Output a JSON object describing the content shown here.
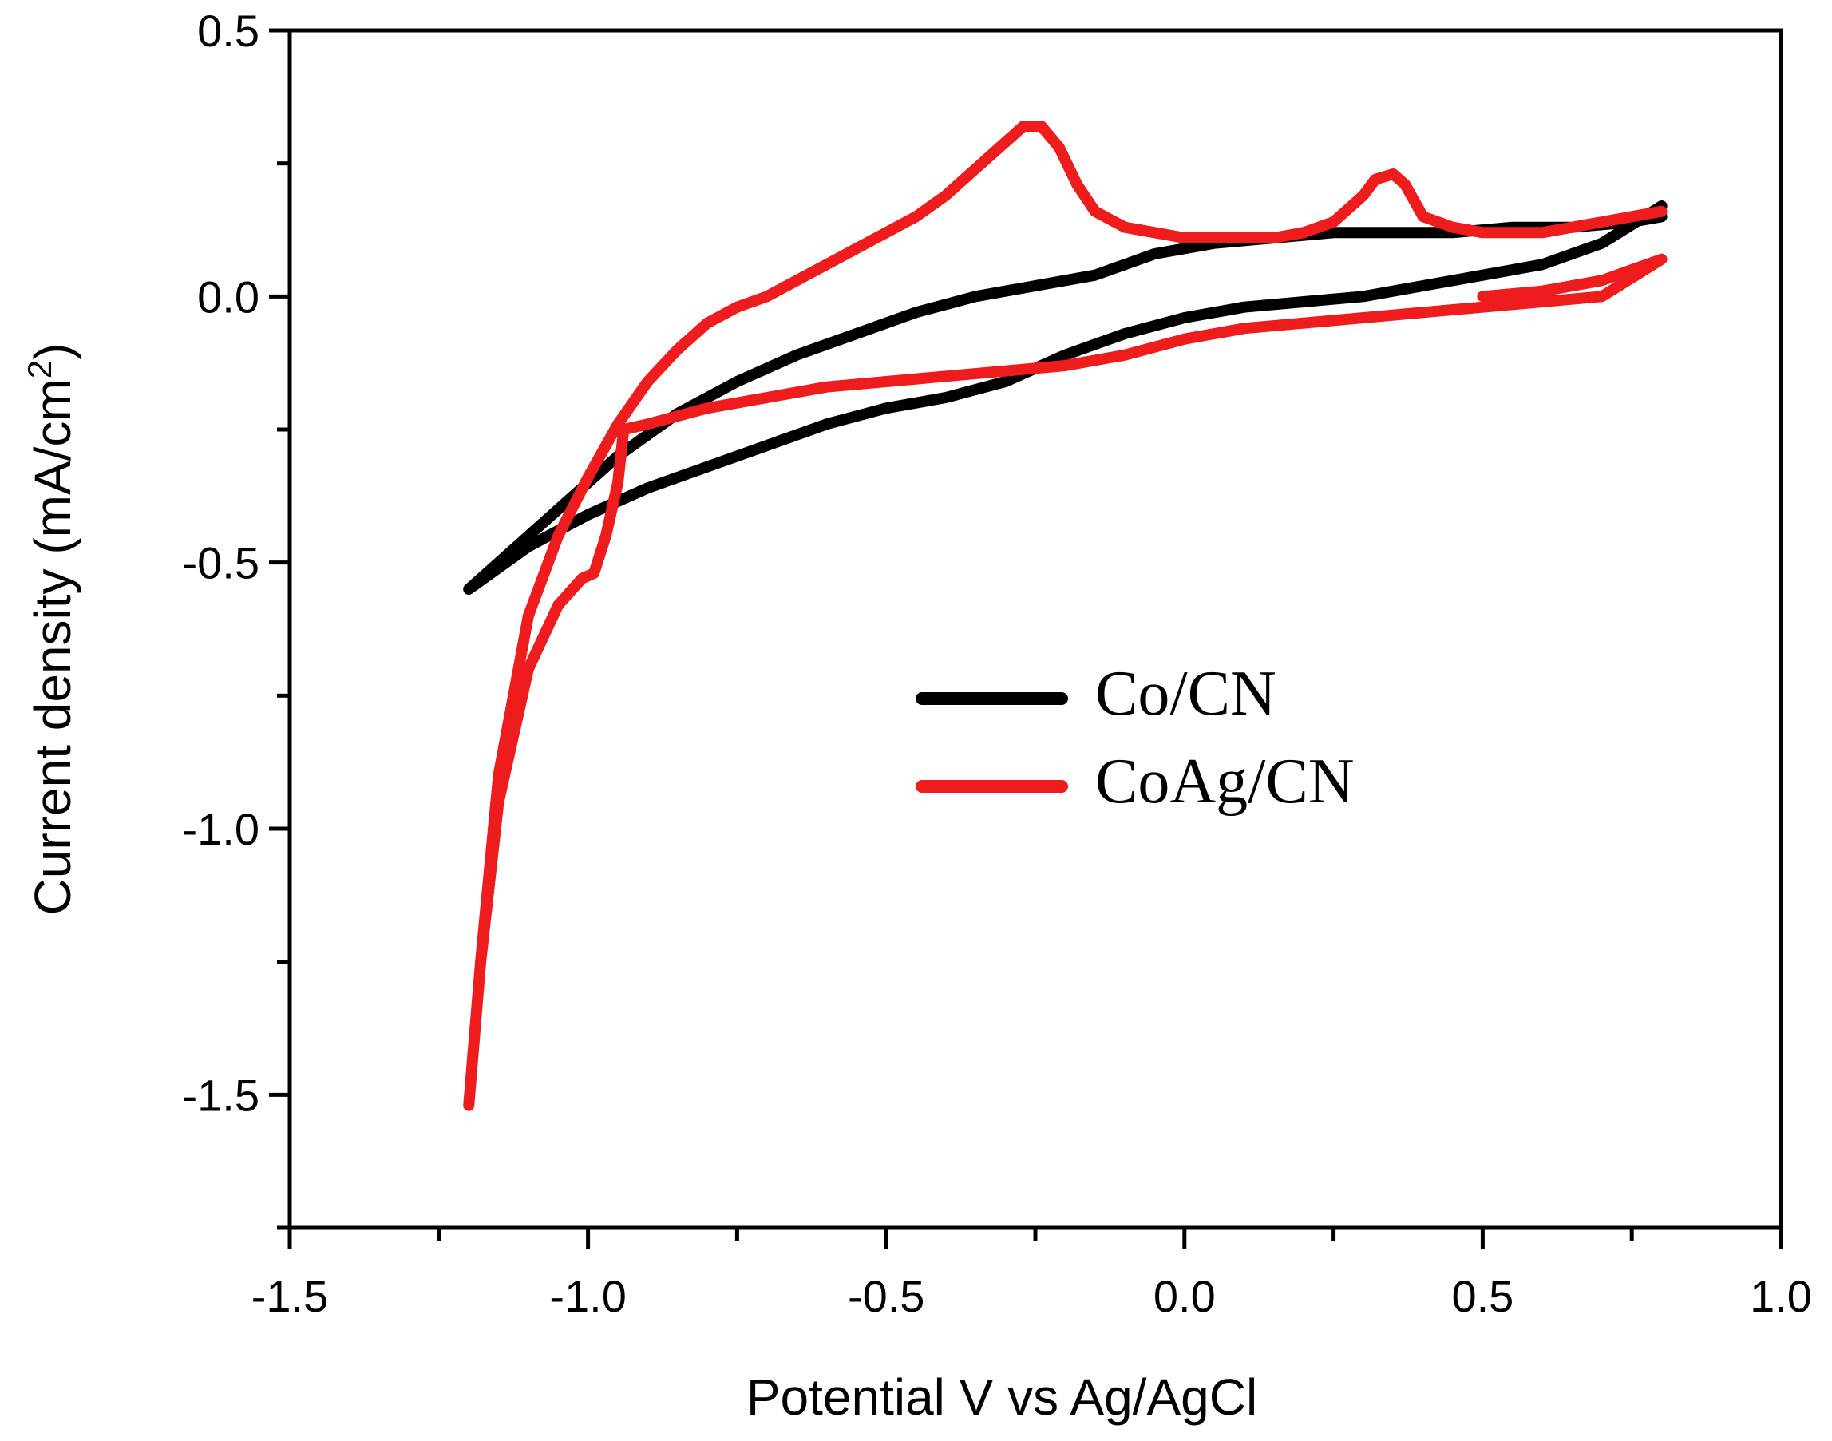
{
  "chart_data": {
    "type": "line",
    "title": "",
    "xlabel": "Potential V vs Ag/AgCl",
    "ylabel": {
      "main": "Current density (mA/cm",
      "superscript": "2",
      "close": ")"
    },
    "xlim": [
      -1.5,
      1.0
    ],
    "ylim": [
      -1.75,
      0.5
    ],
    "xticks": [
      -1.5,
      -1.0,
      -0.5,
      0.0,
      0.5,
      1.0
    ],
    "xtick_labels": [
      "-1.5",
      "-1.0",
      "-0.5",
      "0.0",
      "0.5",
      "1.0"
    ],
    "yticks": [
      0.5,
      0.0,
      -0.5,
      -1.0,
      -1.5
    ],
    "ytick_labels": [
      "0.5",
      "0.0",
      "-0.5",
      "-1.0",
      "-1.5"
    ],
    "grid": false,
    "legend_position": "center-right",
    "series": [
      {
        "name": "Co/CN",
        "color": "#000000",
        "x": [
          0.8,
          0.7,
          0.6,
          0.5,
          0.4,
          0.3,
          0.2,
          0.1,
          0.0,
          -0.1,
          -0.2,
          -0.3,
          -0.4,
          -0.5,
          -0.6,
          -0.7,
          -0.8,
          -0.9,
          -1.0,
          -1.1,
          -1.2,
          -1.15,
          -1.05,
          -0.95,
          -0.85,
          -0.75,
          -0.65,
          -0.55,
          -0.45,
          -0.35,
          -0.25,
          -0.15,
          -0.05,
          0.05,
          0.15,
          0.25,
          0.35,
          0.45,
          0.55,
          0.65,
          0.75,
          0.8
        ],
        "y": [
          0.17,
          0.1,
          0.06,
          0.04,
          0.02,
          0.0,
          -0.01,
          -0.02,
          -0.04,
          -0.07,
          -0.11,
          -0.16,
          -0.19,
          -0.21,
          -0.24,
          -0.28,
          -0.32,
          -0.36,
          -0.41,
          -0.47,
          -0.55,
          -0.5,
          -0.4,
          -0.3,
          -0.22,
          -0.16,
          -0.11,
          -0.07,
          -0.03,
          0.0,
          0.02,
          0.04,
          0.08,
          0.1,
          0.11,
          0.12,
          0.12,
          0.12,
          0.13,
          0.13,
          0.14,
          0.15
        ]
      },
      {
        "name": "CoAg/CN",
        "color": "#ee1c1c",
        "x": [
          0.5,
          0.6,
          0.7,
          0.8,
          0.7,
          0.6,
          0.5,
          0.4,
          0.3,
          0.2,
          0.1,
          0.0,
          -0.1,
          -0.2,
          -0.3,
          -0.4,
          -0.5,
          -0.6,
          -0.7,
          -0.8,
          -0.9,
          -0.94,
          -0.95,
          -0.97,
          -0.99,
          -1.01,
          -1.05,
          -1.1,
          -1.15,
          -1.18,
          -1.2,
          -1.18,
          -1.15,
          -1.1,
          -1.05,
          -1.0,
          -0.95,
          -0.9,
          -0.85,
          -0.8,
          -0.75,
          -0.7,
          -0.65,
          -0.6,
          -0.55,
          -0.5,
          -0.45,
          -0.4,
          -0.35,
          -0.3,
          -0.27,
          -0.24,
          -0.21,
          -0.18,
          -0.15,
          -0.1,
          -0.05,
          0.0,
          0.05,
          0.1,
          0.15,
          0.2,
          0.25,
          0.3,
          0.32,
          0.35,
          0.37,
          0.4,
          0.45,
          0.5,
          0.55,
          0.6,
          0.7,
          0.8
        ],
        "y": [
          0.0,
          0.01,
          0.03,
          0.07,
          0.0,
          -0.01,
          -0.02,
          -0.03,
          -0.04,
          -0.05,
          -0.06,
          -0.08,
          -0.11,
          -0.13,
          -0.14,
          -0.15,
          -0.16,
          -0.17,
          -0.19,
          -0.21,
          -0.24,
          -0.25,
          -0.35,
          -0.45,
          -0.52,
          -0.53,
          -0.58,
          -0.7,
          -0.95,
          -1.25,
          -1.52,
          -1.25,
          -0.9,
          -0.6,
          -0.45,
          -0.34,
          -0.24,
          -0.16,
          -0.1,
          -0.05,
          -0.02,
          0.0,
          0.03,
          0.06,
          0.09,
          0.12,
          0.15,
          0.19,
          0.24,
          0.29,
          0.32,
          0.32,
          0.28,
          0.21,
          0.16,
          0.13,
          0.12,
          0.11,
          0.11,
          0.11,
          0.11,
          0.12,
          0.14,
          0.19,
          0.22,
          0.23,
          0.21,
          0.15,
          0.13,
          0.12,
          0.12,
          0.12,
          0.14,
          0.16
        ]
      }
    ]
  }
}
